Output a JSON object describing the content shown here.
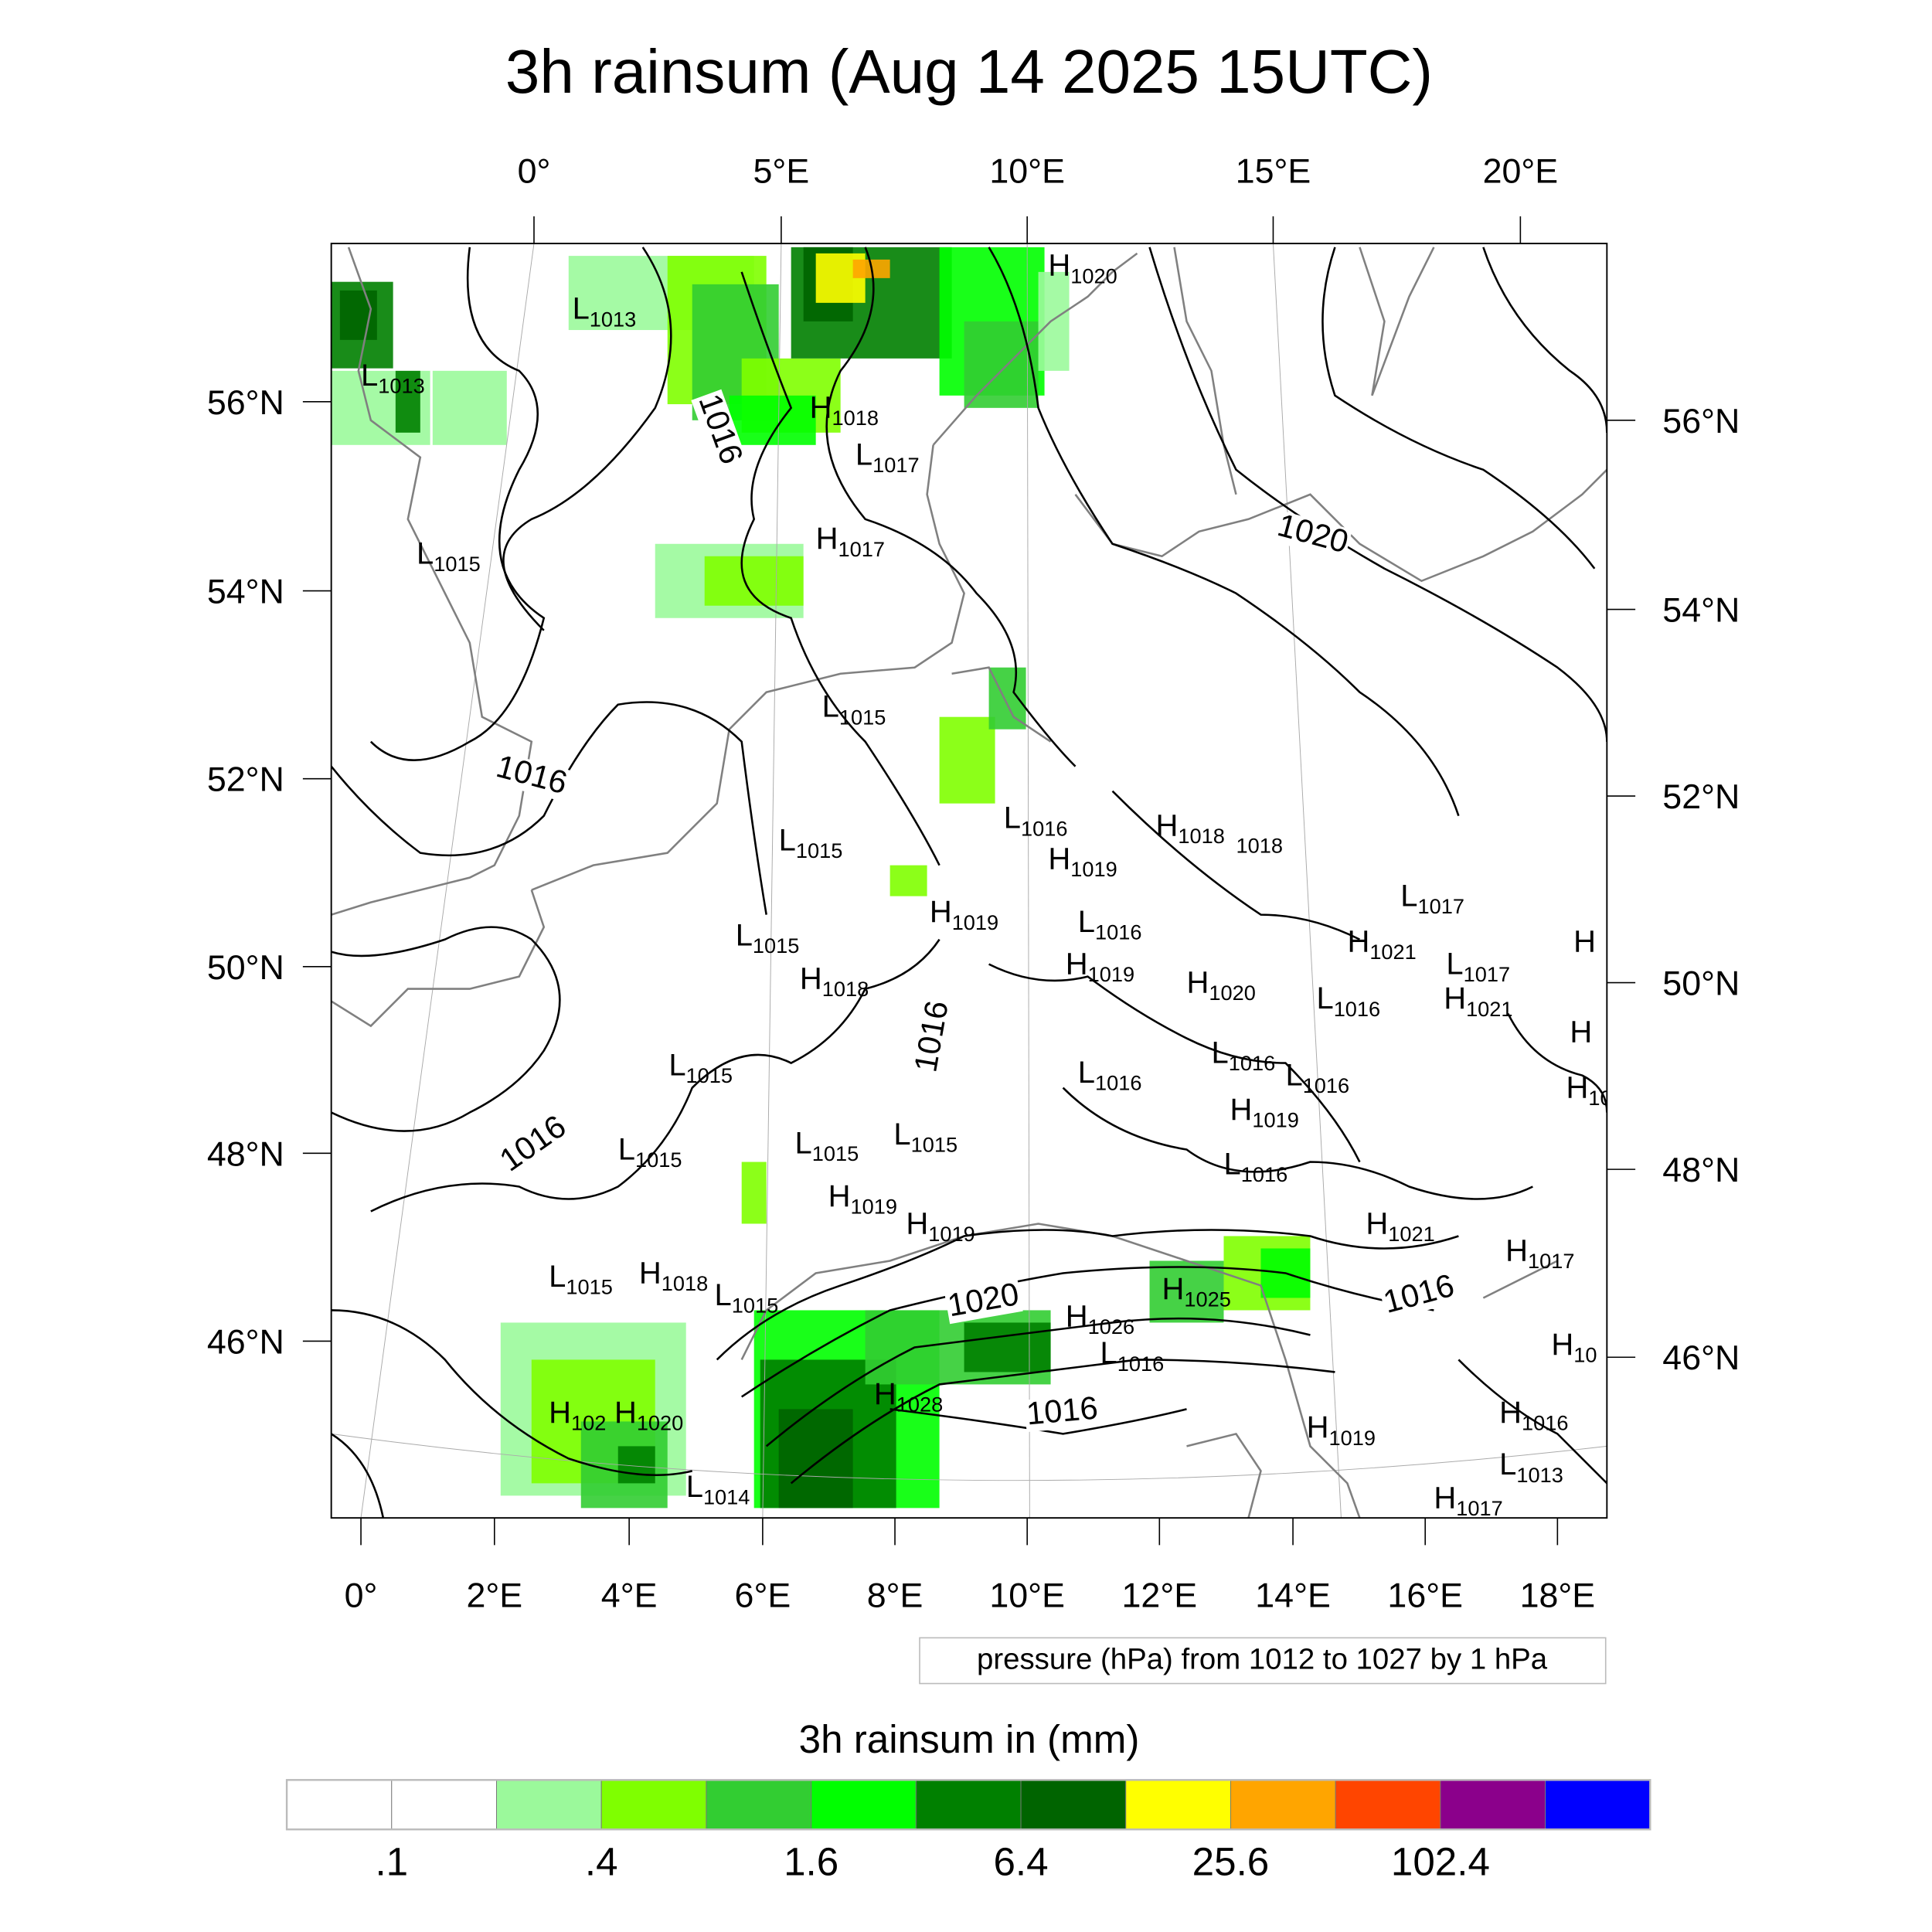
{
  "title": "3h rainsum (Aug 14 2025 15UTC)",
  "top_lon_labels": [
    "0°",
    "5°E",
    "10°E",
    "15°E",
    "20°E"
  ],
  "left_lat_labels": [
    "56°N",
    "54°N",
    "52°N",
    "50°N",
    "48°N",
    "46°N"
  ],
  "right_lat_labels": [
    "56°N",
    "54°N",
    "52°N",
    "50°N",
    "48°N",
    "46°N"
  ],
  "bottom_lon_labels": [
    "0°",
    "2°E",
    "4°E",
    "6°E",
    "8°E",
    "10°E",
    "12°E",
    "14°E",
    "16°E",
    "18°E"
  ],
  "contour_info": "pressure (hPa) from 1012 to 1027 by 1 hPa",
  "pressure_labels": [
    {
      "t": "L",
      "v": "1013"
    },
    {
      "t": "L",
      "v": "1013"
    },
    {
      "t": "H",
      "v": "1018"
    },
    {
      "t": "L",
      "v": "1017"
    },
    {
      "t": "H",
      "v": "1020"
    },
    {
      "t": "L",
      "v": "1015"
    },
    {
      "t": "H",
      "v": "1017"
    },
    {
      "t": "L",
      "v": "1015"
    },
    {
      "t": "L",
      "v": "1016"
    },
    {
      "t": "H",
      "v": "1018"
    },
    {
      "t": "",
      "v": "1018"
    },
    {
      "t": "L",
      "v": "1015"
    },
    {
      "t": "H",
      "v": "1019"
    },
    {
      "t": "L",
      "v": "1017"
    },
    {
      "t": "H",
      "v": "1019"
    },
    {
      "t": "L",
      "v": "1016"
    },
    {
      "t": "H",
      "v": "1021"
    },
    {
      "t": "L",
      "v": "1017"
    },
    {
      "t": "L",
      "v": "1015"
    },
    {
      "t": "H",
      "v": "1018"
    },
    {
      "t": "H",
      "v": "1019"
    },
    {
      "t": "H",
      "v": "1020"
    },
    {
      "t": "H",
      "v": "1021"
    },
    {
      "t": "L",
      "v": "1016"
    },
    {
      "t": "L",
      "v": "1016"
    },
    {
      "t": "L",
      "v": "1015"
    },
    {
      "t": "L",
      "v": "1016"
    },
    {
      "t": "L",
      "v": "1016"
    },
    {
      "t": "H",
      "v": "1019"
    },
    {
      "t": "L",
      "v": "1015"
    },
    {
      "t": "L",
      "v": "1015"
    },
    {
      "t": "L",
      "v": "1015"
    },
    {
      "t": "L",
      "v": "1016"
    },
    {
      "t": "H",
      "v": "1019"
    },
    {
      "t": "H",
      "v": "1019"
    },
    {
      "t": "H",
      "v": "1021"
    },
    {
      "t": "H",
      "v": "1017"
    },
    {
      "t": "L",
      "v": "1015"
    },
    {
      "t": "H",
      "v": "1018"
    },
    {
      "t": "L",
      "v": "1015"
    },
    {
      "t": "H",
      "v": "1026"
    },
    {
      "t": "H",
      "v": "1025"
    },
    {
      "t": "L",
      "v": "1016"
    },
    {
      "t": "H",
      "v": "1028"
    },
    {
      "t": "H",
      "v": "102"
    },
    {
      "t": "H",
      "v": "1020"
    },
    {
      "t": "H",
      "v": "1019"
    },
    {
      "t": "H",
      "v": "1016"
    },
    {
      "t": "L",
      "v": "1013"
    },
    {
      "t": "H",
      "v": "1017"
    },
    {
      "t": "L",
      "v": "1014"
    },
    {
      "t": "H",
      "v": "10"
    },
    {
      "t": "H",
      "v": ""
    },
    {
      "t": "H",
      "v": ""
    },
    {
      "t": "H",
      "v": "10"
    }
  ],
  "contour_line_labels": [
    "1016",
    "1020",
    "1016",
    "1016",
    "1016",
    "1020",
    "1016",
    "1016"
  ],
  "colorbar": {
    "title": "3h rainsum in (mm)",
    "colors": [
      "#ffffff",
      "#ffffff",
      "#9bf99b",
      "#7fff00",
      "#32cd32",
      "#00ff00",
      "#008000",
      "#006400",
      "#ffff00",
      "#ffa500",
      "#ff4500",
      "#8b008b",
      "#0000ff"
    ],
    "labels": [
      ".1",
      ".4",
      "1.6",
      "6.4",
      "25.6",
      "102.4"
    ]
  },
  "colors": {
    "coast": "#808080",
    "contour": "#000000"
  }
}
